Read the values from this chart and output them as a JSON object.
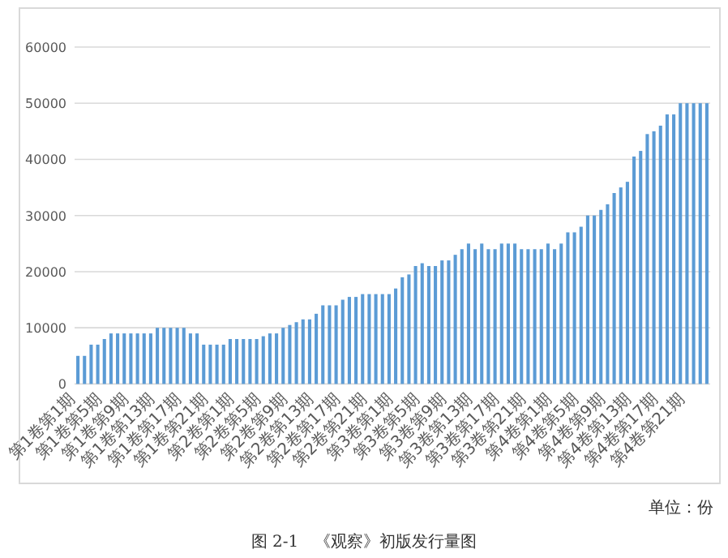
{
  "chart_data": {
    "type": "bar",
    "title": "图 2-1　《观察》初版发行量图",
    "annotations": [
      "单位：份"
    ],
    "categories": [
      "第1卷第1期",
      null,
      null,
      null,
      "第1卷第5期",
      null,
      null,
      null,
      "第1卷第9期",
      null,
      null,
      null,
      "第1卷第13期",
      null,
      null,
      null,
      "第1卷第17期",
      null,
      null,
      null,
      "第1卷第21期",
      null,
      null,
      null,
      "第2卷第1期",
      null,
      null,
      null,
      "第2卷第5期",
      null,
      null,
      null,
      "第2卷第9期",
      null,
      null,
      null,
      "第2卷第13期",
      null,
      null,
      null,
      "第2卷第17期",
      null,
      null,
      null,
      "第2卷第21期",
      null,
      null,
      null,
      "第3卷第1期",
      null,
      null,
      null,
      "第3卷第5期",
      null,
      null,
      null,
      "第3卷第9期",
      null,
      null,
      null,
      "第3卷第13期",
      null,
      null,
      null,
      "第3卷第17期",
      null,
      null,
      null,
      "第3卷第21期",
      null,
      null,
      null,
      "第4卷第1期",
      null,
      null,
      null,
      "第4卷第5期",
      null,
      null,
      null,
      "第4卷第9期",
      null,
      null,
      null,
      "第4卷第13期",
      null,
      null,
      null,
      "第4卷第17期",
      null,
      null,
      null,
      "第4卷第21期",
      null,
      null,
      null
    ],
    "values": [
      5000,
      5000,
      7000,
      7000,
      8000,
      9000,
      9000,
      9000,
      9000,
      9000,
      9000,
      9000,
      10000,
      10000,
      10000,
      10000,
      10000,
      9000,
      9000,
      7000,
      7000,
      7000,
      7000,
      8000,
      8000,
      8000,
      8000,
      8000,
      8500,
      9000,
      9000,
      10000,
      10500,
      11000,
      11500,
      11500,
      12500,
      14000,
      14000,
      14000,
      15000,
      15500,
      15500,
      16000,
      16000,
      16000,
      16000,
      16000,
      17000,
      19000,
      19500,
      21000,
      21500,
      21000,
      21000,
      22000,
      22000,
      23000,
      24000,
      25000,
      24000,
      25000,
      24000,
      24000,
      25000,
      25000,
      25000,
      24000,
      24000,
      24000,
      24000,
      25000,
      24000,
      25000,
      27000,
      27000,
      28000,
      30000,
      30000,
      31000,
      32000,
      34000,
      35000,
      36000,
      40500,
      41500,
      44500,
      45000,
      46000,
      48000,
      48000,
      50000,
      50000,
      50000,
      50000,
      50000
    ],
    "color": "#5b9bd5",
    "ylim": [
      0,
      60000
    ],
    "yticks": [
      0,
      10000,
      20000,
      30000,
      40000,
      50000,
      60000
    ],
    "grid": "y"
  }
}
